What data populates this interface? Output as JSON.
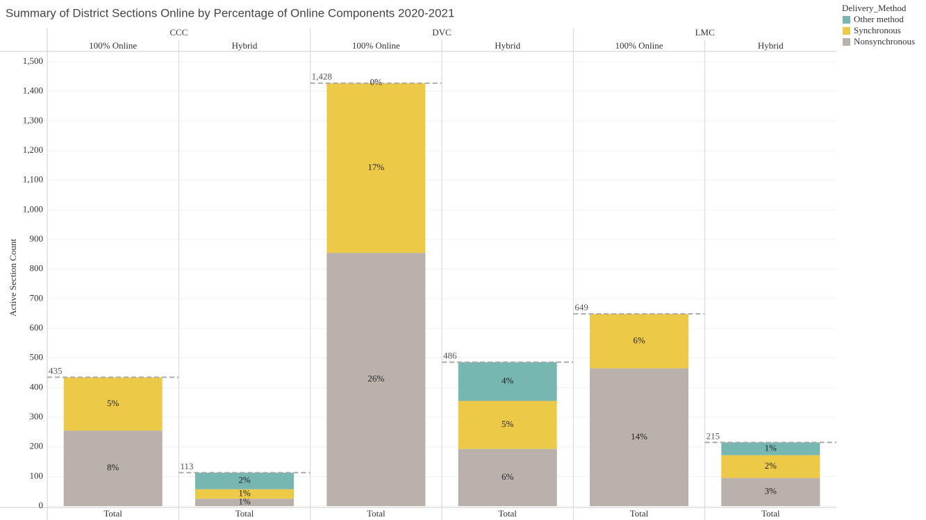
{
  "chart_data": {
    "type": "stacked_bar",
    "title": "Summary of District Sections Online by Percentage of Online Components 2020-2021",
    "ylabel": "Active Section Count",
    "groups": [
      "CCC",
      "DVC",
      "LMC"
    ],
    "categories": [
      "100% Online",
      "Hybrid",
      "100% Online",
      "Hybrid",
      "100% Online",
      "Hybrid"
    ],
    "x_labels": [
      "Total",
      "Total",
      "Total",
      "Total",
      "Total",
      "Total"
    ],
    "legend_title": "Delivery_Method",
    "legend": "right",
    "grid": true,
    "series": [
      {
        "name": "Other method",
        "color": "#76b7b2",
        "values": [
          null,
          56,
          0,
          131,
          null,
          43
        ],
        "value_labels": [
          null,
          "2%",
          "0%",
          "4%",
          null,
          "1%"
        ]
      },
      {
        "name": "Synchronous",
        "color": "#edc948",
        "values": [
          180,
          32,
          573,
          162,
          184,
          77
        ],
        "value_labels": [
          "5%",
          "1%",
          "17%",
          "5%",
          "6%",
          "2%"
        ]
      },
      {
        "name": "Nonsynchronous",
        "color": "#bab0ac",
        "values": [
          255,
          25,
          855,
          193,
          465,
          95
        ],
        "value_labels": [
          "8%",
          "1%",
          "26%",
          "6%",
          "14%",
          "3%"
        ]
      }
    ],
    "totals": [
      435,
      113,
      1428,
      486,
      649,
      215
    ],
    "total_labels": [
      "435",
      "113",
      "1,428",
      "486",
      "649",
      "215"
    ],
    "ylim": [
      0,
      1500
    ],
    "yticks": [
      0,
      100,
      200,
      300,
      400,
      500,
      600,
      700,
      800,
      900,
      {
        "value": 1000,
        "label": "1,000"
      },
      {
        "value": 1100,
        "label": "1,100"
      },
      {
        "value": 1200,
        "label": "1,200"
      },
      {
        "value": 1300,
        "label": "1,300"
      },
      {
        "value": 1400,
        "label": "1,400"
      },
      {
        "value": 1500,
        "label": "1,500"
      }
    ]
  }
}
